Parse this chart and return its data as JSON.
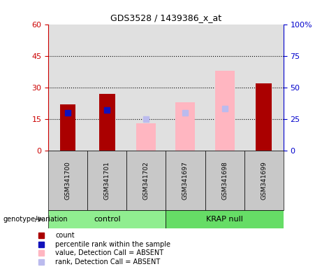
{
  "title": "GDS3528 / 1439386_x_at",
  "samples": [
    "GSM341700",
    "GSM341701",
    "GSM341702",
    "GSM341697",
    "GSM341698",
    "GSM341699"
  ],
  "count_values": [
    22,
    27,
    null,
    null,
    null,
    32
  ],
  "count_color": "#AA0000",
  "percentile_values": [
    30,
    32,
    null,
    null,
    null,
    null
  ],
  "percentile_color": "#1111BB",
  "absent_value_values": [
    null,
    null,
    13,
    23,
    38,
    null
  ],
  "absent_value_color": "#FFB6C1",
  "absent_rank_values": [
    null,
    null,
    25,
    30,
    33,
    null
  ],
  "absent_rank_color": "#BBBBEE",
  "ylim_left": [
    0,
    60
  ],
  "ylim_right": [
    0,
    100
  ],
  "yticks_left": [
    0,
    15,
    30,
    45,
    60
  ],
  "yticks_right": [
    0,
    25,
    50,
    75,
    100
  ],
  "ytick_labels_right": [
    "0",
    "25",
    "50",
    "75",
    "100%"
  ],
  "bar_width": 0.4,
  "absent_bar_width": 0.5,
  "legend_items": [
    {
      "label": "count",
      "color": "#AA0000"
    },
    {
      "label": "percentile rank within the sample",
      "color": "#1111BB"
    },
    {
      "label": "value, Detection Call = ABSENT",
      "color": "#FFB6C1"
    },
    {
      "label": "rank, Detection Call = ABSENT",
      "color": "#BBBBEE"
    }
  ],
  "genotype_label": "genotype/variation",
  "background_color": "#FFFFFF",
  "plot_bg_color": "#E0E0E0",
  "title_color": "#000000",
  "left_axis_color": "#CC0000",
  "right_axis_color": "#0000CC",
  "group_labels": [
    "control",
    "KRAP null"
  ],
  "group_color": "#90EE90",
  "sample_box_color": "#C8C8C8",
  "marker_size": 6
}
